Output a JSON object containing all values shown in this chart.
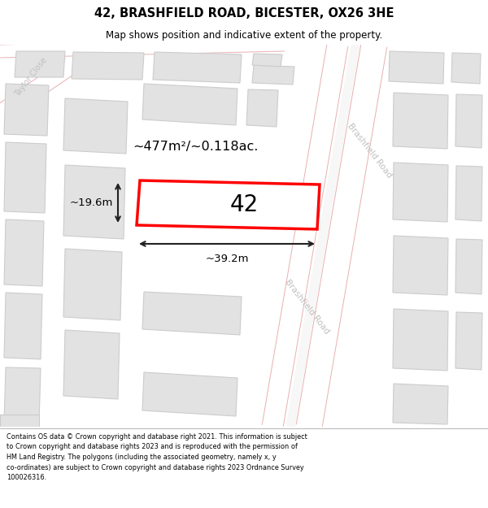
{
  "title": "42, BRASHFIELD ROAD, BICESTER, OX26 3HE",
  "subtitle": "Map shows position and indicative extent of the property.",
  "footer_lines": [
    "Contains OS data © Crown copyright and database right 2021. This information is subject",
    "to Crown copyright and database rights 2023 and is reproduced with the permission of",
    "HM Land Registry. The polygons (including the associated geometry, namely x, y",
    "co-ordinates) are subject to Crown copyright and database rights 2023 Ordnance Survey",
    "100026316."
  ],
  "map_bg": "#f7f7f7",
  "road_fill": "#f7f7f7",
  "road_edge": "#e8b0b0",
  "building_fill": "#e2e2e2",
  "building_edge": "#cccccc",
  "prop_fill": "#ffffff",
  "prop_edge": "#ff0000",
  "prop_lw": 2.5,
  "label_42": "42",
  "area_label": "~477m²/~0.118ac.",
  "width_label": "~39.2m",
  "height_label": "~19.6m",
  "road_label_br1": "Brashfield Road",
  "road_label_br2": "Brashfield Road",
  "road_label_tc": "Taylor Close",
  "road_label_color": "#c0c0c0",
  "dim_color": "#222222",
  "text_color": "#000000"
}
